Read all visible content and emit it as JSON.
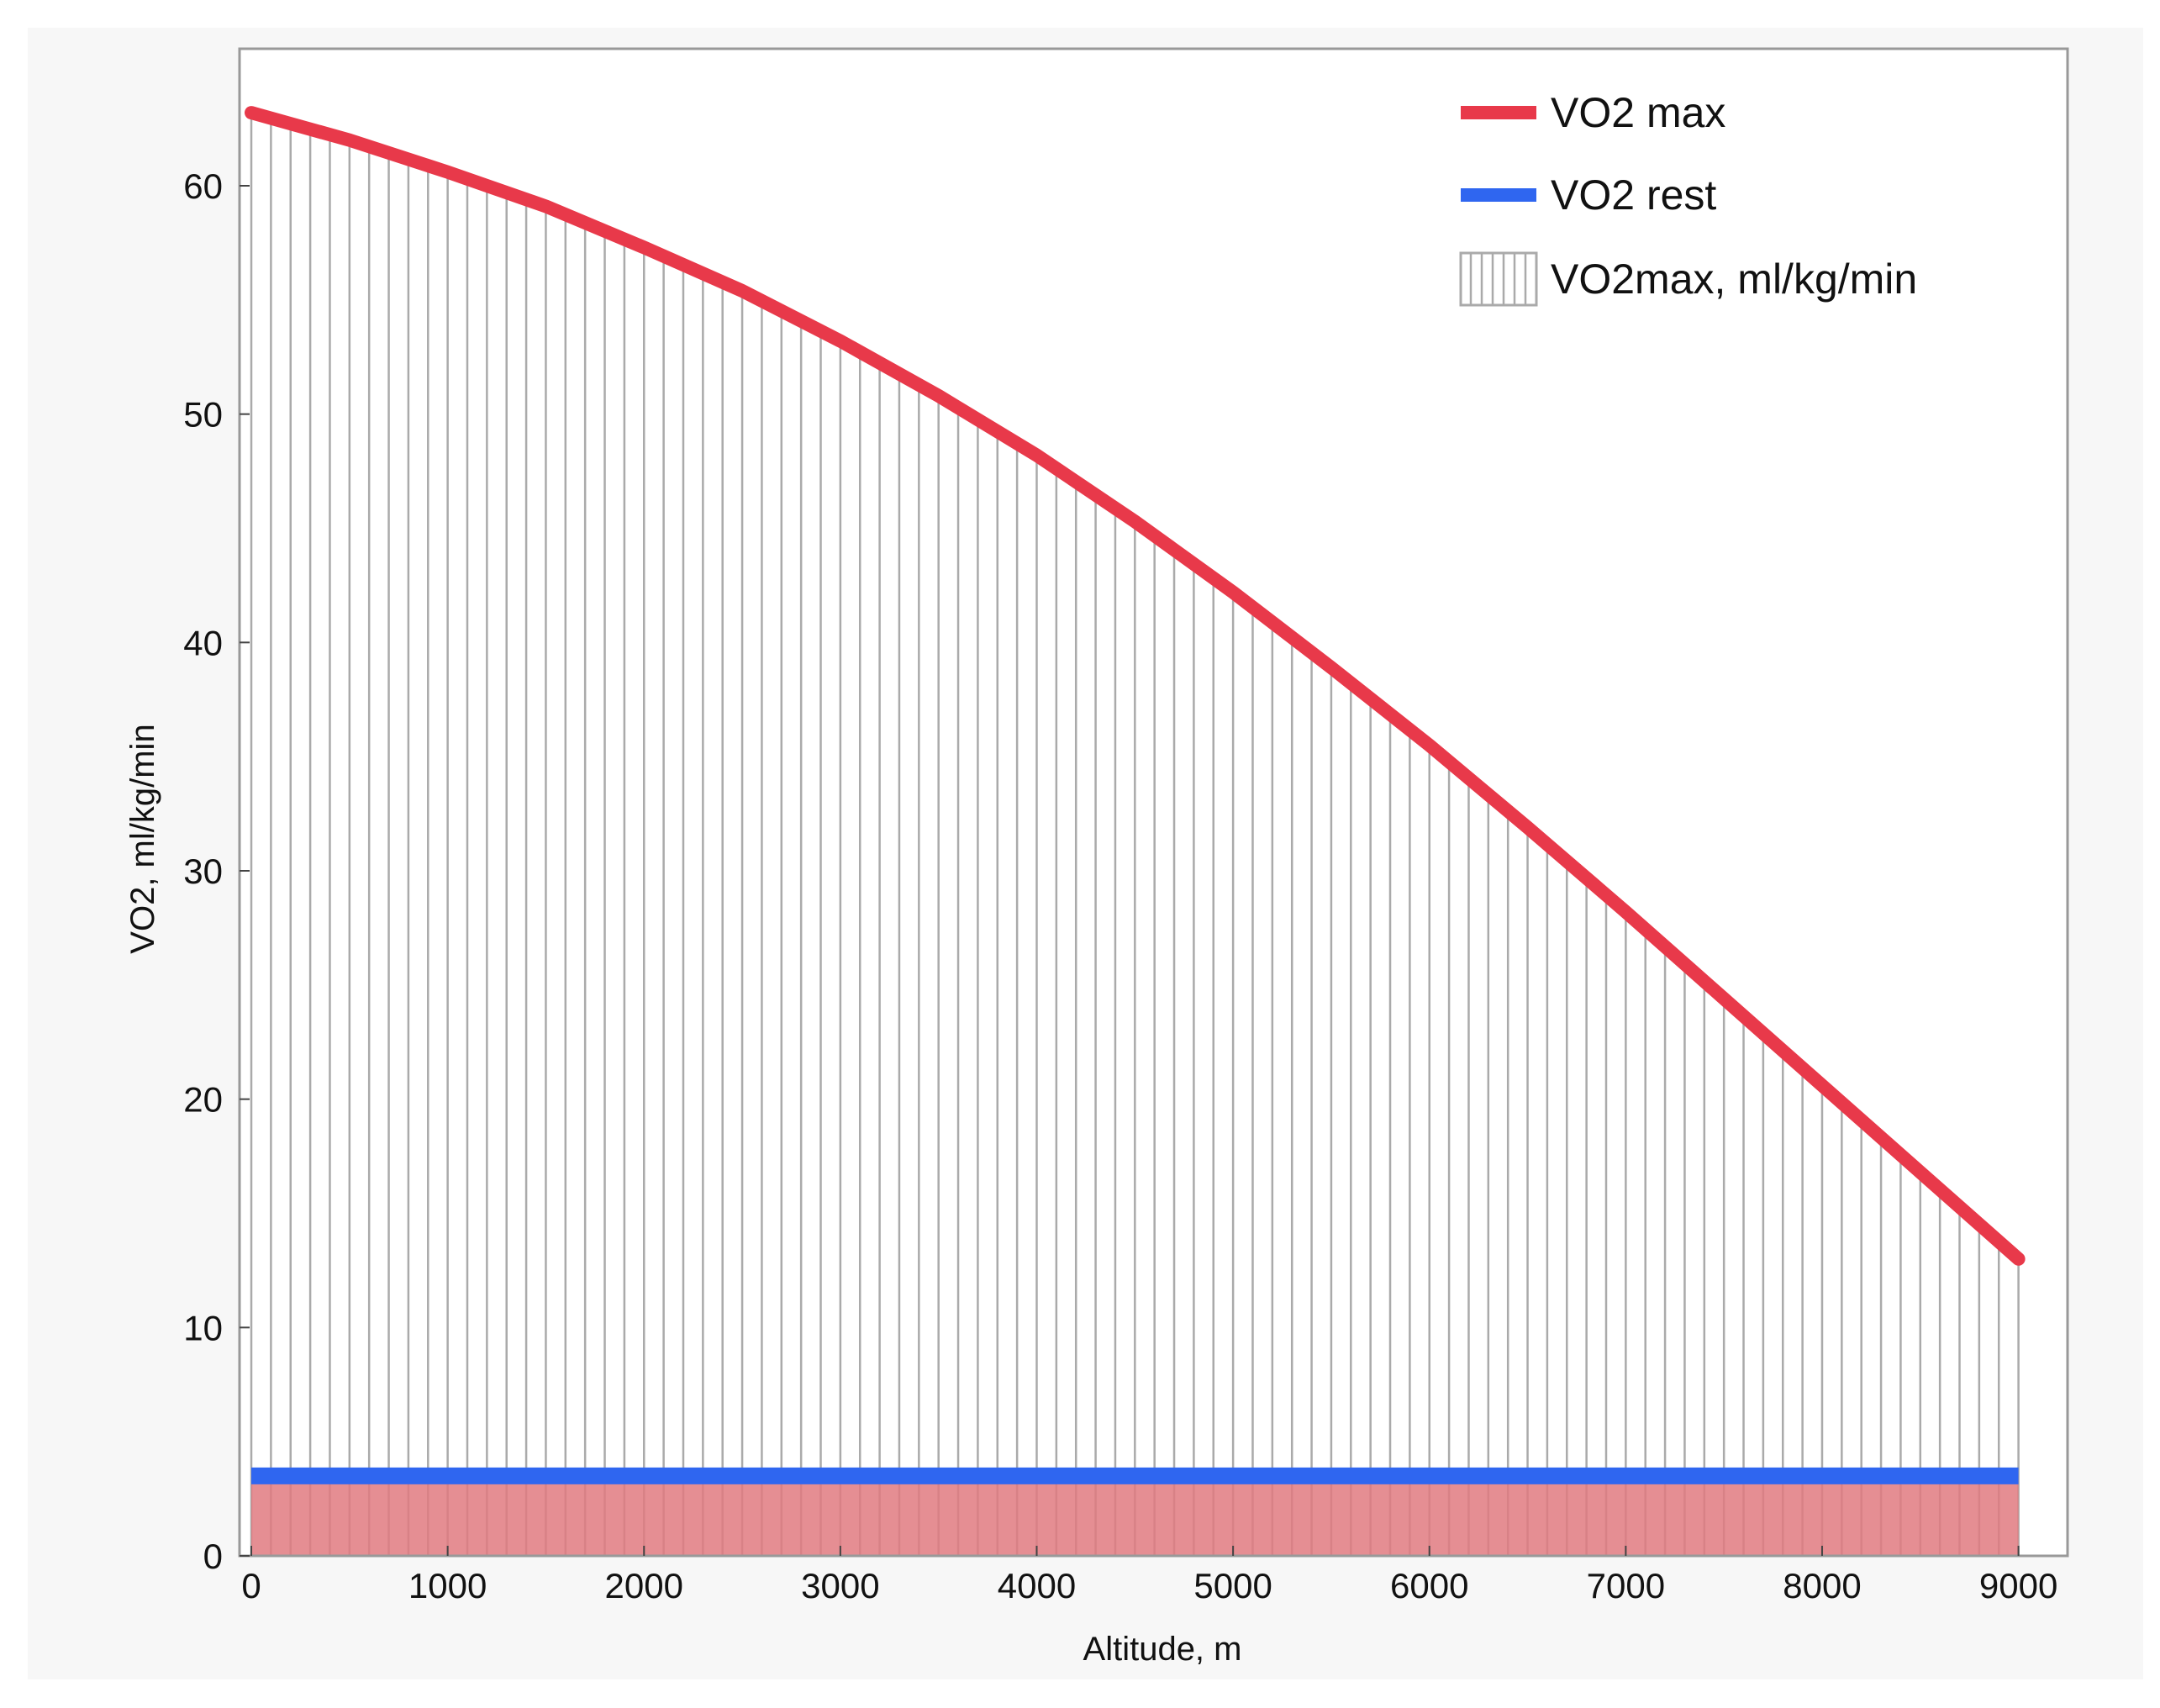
{
  "chart_data": {
    "type": "line",
    "title": "",
    "xlabel": "Altitude, m",
    "ylabel": "VO2, ml/kg/min",
    "xlim": [
      -60,
      9250
    ],
    "ylim": [
      0,
      66
    ],
    "x_ticks": [
      0,
      1000,
      2000,
      3000,
      4000,
      5000,
      6000,
      7000,
      8000,
      9000
    ],
    "y_ticks": [
      0,
      10,
      20,
      30,
      40,
      50,
      60
    ],
    "grid": false,
    "legend_position": "top-right",
    "hatch_step": 100,
    "colors": {
      "vo2max": "#e8394a",
      "vo2rest": "#2f66f0",
      "hatch": "#aaaaaa",
      "rest_fill": "#e07a80",
      "frame": "#999999"
    },
    "series": [
      {
        "name": "VO2 max",
        "style": "line",
        "x": [
          0,
          500,
          1000,
          1500,
          2000,
          2500,
          3000,
          3500,
          4000,
          4500,
          5000,
          5500,
          6000,
          6500,
          7000,
          7500,
          8000,
          8500,
          9000
        ],
        "y": [
          63.2,
          62.0,
          60.6,
          59.1,
          57.3,
          55.4,
          53.2,
          50.8,
          48.2,
          45.3,
          42.2,
          38.9,
          35.5,
          31.9,
          28.2,
          24.4,
          20.6,
          16.8,
          13.0
        ]
      },
      {
        "name": "VO2 rest",
        "style": "line",
        "x": [
          0,
          9000
        ],
        "y": [
          3.5,
          3.5
        ]
      },
      {
        "name": "VO2max, ml/kg/min",
        "style": "hatched-area",
        "x": [
          0,
          500,
          1000,
          1500,
          2000,
          2500,
          3000,
          3500,
          4000,
          4500,
          5000,
          5500,
          6000,
          6500,
          7000,
          7500,
          8000,
          8500,
          9000
        ],
        "y": [
          63.2,
          62.0,
          60.6,
          59.1,
          57.3,
          55.4,
          53.2,
          50.8,
          48.2,
          45.3,
          42.2,
          38.9,
          35.5,
          31.9,
          28.2,
          24.4,
          20.6,
          16.8,
          13.0
        ]
      }
    ]
  }
}
